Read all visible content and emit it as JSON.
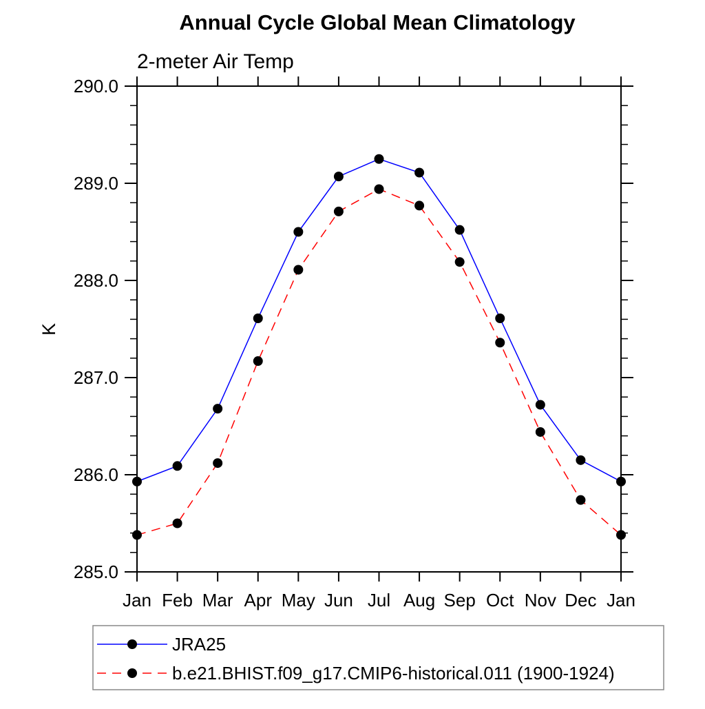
{
  "page": {
    "background": "#ffffff",
    "axis_color": "#000000",
    "marker_color": "#000000",
    "legend_border_color": "#888888"
  },
  "chart_data": {
    "type": "line",
    "title": "Annual Cycle Global Mean Climatology",
    "left_subtitle": "2-meter Air Temp",
    "xlabel": "",
    "ylabel": "K",
    "grid": false,
    "legend_position": "bottom-left-box",
    "ylim": [
      285.0,
      290.0
    ],
    "ytick_major_interval": 1.0,
    "ytick_minor_interval": 0.2,
    "yticks": [
      285.0,
      286.0,
      287.0,
      288.0,
      289.0,
      290.0
    ],
    "ytick_labels": [
      "285.0",
      "286.0",
      "287.0",
      "288.0",
      "289.0",
      "290.0"
    ],
    "x_categories": [
      "Jan",
      "Feb",
      "Mar",
      "Apr",
      "May",
      "Jun",
      "Jul",
      "Aug",
      "Sep",
      "Oct",
      "Nov",
      "Dec",
      "Jan"
    ],
    "series": [
      {
        "name": "JRA25",
        "color": "#0000ff",
        "line_style": "solid",
        "marker": "filled-circle",
        "values": [
          285.93,
          286.09,
          286.68,
          287.61,
          288.5,
          289.07,
          289.25,
          289.11,
          288.52,
          287.61,
          286.72,
          286.15,
          285.93
        ]
      },
      {
        "name": "b.e21.BHIST.f09_g17.CMIP6-historical.011 (1900-1924)",
        "color": "#ff0000",
        "line_style": "dashed",
        "marker": "filled-circle",
        "values": [
          285.38,
          285.5,
          286.12,
          287.17,
          288.11,
          288.71,
          288.94,
          288.77,
          288.19,
          287.36,
          286.44,
          285.74,
          285.38
        ]
      }
    ]
  }
}
